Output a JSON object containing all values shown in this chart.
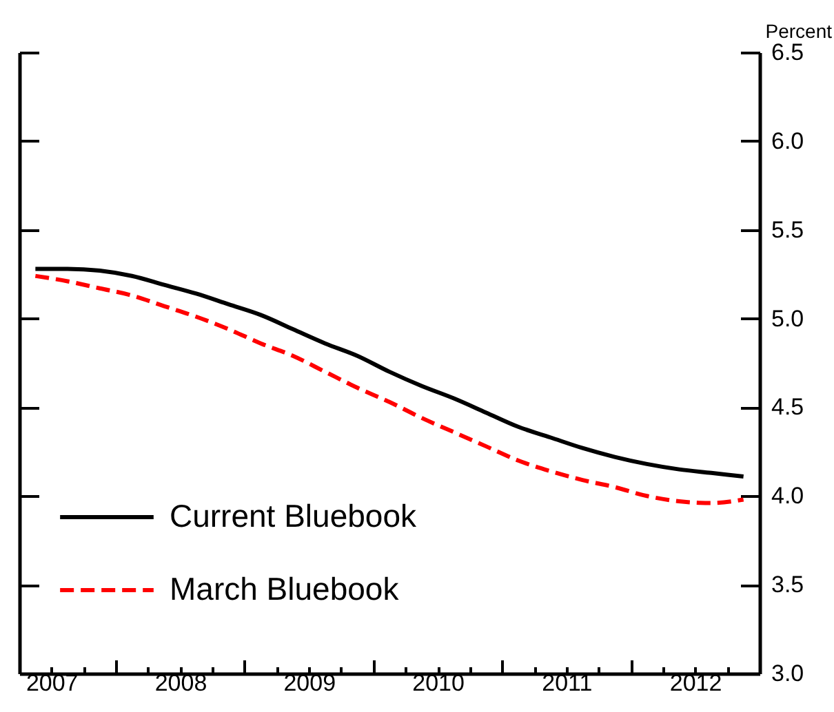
{
  "chart_data": {
    "type": "line",
    "ylabel": "Percent",
    "x": [
      2007.375,
      2007.625,
      2007.875,
      2008.125,
      2008.375,
      2008.625,
      2008.875,
      2009.125,
      2009.375,
      2009.625,
      2009.875,
      2010.125,
      2010.375,
      2010.625,
      2010.875,
      2011.125,
      2011.375,
      2011.625,
      2011.875,
      2012.125,
      2012.375,
      2012.625,
      2012.875
    ],
    "series": [
      {
        "name": "Current Bluebook",
        "color": "#000000",
        "line_style": "solid",
        "values": [
          5.28,
          5.28,
          5.27,
          5.24,
          5.19,
          5.14,
          5.08,
          5.02,
          4.94,
          4.86,
          4.79,
          4.7,
          4.62,
          4.55,
          4.47,
          4.39,
          4.33,
          4.27,
          4.22,
          4.18,
          4.15,
          4.13,
          4.11
        ]
      },
      {
        "name": "March Bluebook",
        "color": "#ff0000",
        "line_style": "dashed",
        "values": [
          5.24,
          5.21,
          5.17,
          5.13,
          5.07,
          5.01,
          4.94,
          4.86,
          4.79,
          4.7,
          4.61,
          4.53,
          4.44,
          4.36,
          4.28,
          4.2,
          4.14,
          4.09,
          4.05,
          4.0,
          3.97,
          3.96,
          3.98
        ]
      }
    ],
    "xlim": [
      2007.25,
      2013.0
    ],
    "xticks": [
      {
        "value": 2007.5,
        "label": "2007"
      },
      {
        "value": 2007.75,
        "label": null
      },
      {
        "value": 2008,
        "label": null
      },
      {
        "value": 2008.25,
        "label": null
      },
      {
        "value": 2008.5,
        "label": "2008"
      },
      {
        "value": 2008.75,
        "label": null
      },
      {
        "value": 2009,
        "label": null
      },
      {
        "value": 2009.25,
        "label": null
      },
      {
        "value": 2009.5,
        "label": "2009"
      },
      {
        "value": 2009.75,
        "label": null
      },
      {
        "value": 2010,
        "label": null
      },
      {
        "value": 2010.25,
        "label": null
      },
      {
        "value": 2010.5,
        "label": "2010"
      },
      {
        "value": 2010.75,
        "label": null
      },
      {
        "value": 2011,
        "label": null
      },
      {
        "value": 2011.25,
        "label": null
      },
      {
        "value": 2011.5,
        "label": "2011"
      },
      {
        "value": 2011.75,
        "label": null
      },
      {
        "value": 2012,
        "label": null
      },
      {
        "value": 2012.25,
        "label": null
      },
      {
        "value": 2012.5,
        "label": "2012"
      },
      {
        "value": 2012.75,
        "label": null
      }
    ],
    "ylim": [
      3.0,
      6.5
    ],
    "yticks": [
      {
        "value": 3.0,
        "label": "3.0"
      },
      {
        "value": 3.5,
        "label": "3.5"
      },
      {
        "value": 4.0,
        "label": "4.0"
      },
      {
        "value": 4.5,
        "label": "4.5"
      },
      {
        "value": 5.0,
        "label": "5.0"
      },
      {
        "value": 5.5,
        "label": "5.5"
      },
      {
        "value": 6.0,
        "label": "6.0"
      },
      {
        "value": 6.5,
        "label": "6.5"
      }
    ],
    "grid": false,
    "legend": "left",
    "marker": "none"
  }
}
